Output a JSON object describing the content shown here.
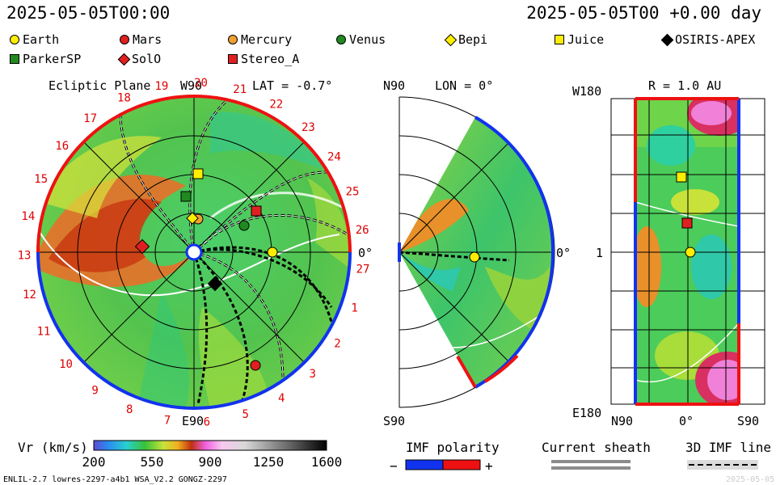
{
  "header": {
    "left_time": "2025-05-05T00:00",
    "right_time": "2025-05-05T00 +0.00 day"
  },
  "bodies": [
    {
      "name": "Earth",
      "shape": "circle",
      "color": "#ffee00"
    },
    {
      "name": "Mars",
      "shape": "circle",
      "color": "#e02020"
    },
    {
      "name": "Mercury",
      "shape": "circle",
      "color": "#f0a030"
    },
    {
      "name": "Venus",
      "shape": "circle",
      "color": "#208a20"
    },
    {
      "name": "Bepi",
      "shape": "diamond",
      "color": "#ffee00"
    },
    {
      "name": "Juice",
      "shape": "square",
      "color": "#ffee00"
    },
    {
      "name": "OSIRIS-APEX",
      "shape": "diamond",
      "color": "#000000"
    },
    {
      "name": "ParkerSP",
      "shape": "square",
      "color": "#208a20"
    },
    {
      "name": "SolO",
      "shape": "diamond",
      "color": "#e02020"
    },
    {
      "name": "Stereo_A",
      "shape": "square",
      "color": "#e02020"
    }
  ],
  "panels": {
    "ecliptic": {
      "title": "Ecliptic Plane",
      "top": "W90",
      "bottom": "E90",
      "lat": "LAT = -0.7°",
      "right": "0°"
    },
    "meridional": {
      "top_left": "N90",
      "lon": "LON = 0°",
      "bottom_left": "S90",
      "right": "0°"
    },
    "rect": {
      "top_left": "W180",
      "r": "R = 1.0 AU",
      "bottom_left": "E180",
      "left_mid": "1",
      "x_left": "N90",
      "x_mid": "0°",
      "x_right": "S90"
    }
  },
  "carrington_ticks": [
    "19",
    "20",
    "21",
    "22",
    "23",
    "24",
    "25",
    "26",
    "27",
    "1",
    "2",
    "3",
    "4",
    "5",
    "6",
    "7",
    "8",
    "9",
    "10",
    "11",
    "12",
    "13",
    "14",
    "15",
    "16",
    "17",
    "18"
  ],
  "colorbar": {
    "label": "Vr (km/s)",
    "ticks": [
      "200",
      "550",
      "900",
      "1250",
      "1600"
    ]
  },
  "imf": {
    "label": "IMF polarity",
    "minus": "−",
    "plus": "+"
  },
  "sheath": {
    "label": "Current sheath"
  },
  "imfline": {
    "label": "3D IMF line"
  },
  "footer": {
    "left": "ENLIL-2.7 lowres-2297-a4b1 WSA_V2.2 GONGZ-2297",
    "right": "2025-05-05"
  },
  "chart_data": [
    {
      "type": "heatmap",
      "title": "Ecliptic Plane",
      "quantity": "Vr (km/s)",
      "range": [
        200,
        1600
      ],
      "bodies_in_view": [
        "Earth",
        "Mars",
        "Mercury",
        "Venus",
        "Bepi",
        "Juice",
        "OSIRIS-APEX",
        "ParkerSP",
        "SolO",
        "Stereo_A"
      ]
    },
    {
      "type": "heatmap",
      "title": "LON = 0°",
      "quantity": "Vr (km/s)",
      "range": [
        200,
        1600
      ],
      "bodies_in_view": [
        "Earth"
      ]
    },
    {
      "type": "heatmap",
      "title": "R = 1.0 AU",
      "quantity": "Vr (km/s)",
      "range": [
        200,
        1600
      ],
      "xticks": [
        "N90",
        "0°",
        "S90"
      ],
      "yticks": [
        "W180",
        "1",
        "E180"
      ],
      "bodies_in_view": [
        "Juice",
        "Stereo_A",
        "Earth"
      ]
    }
  ]
}
